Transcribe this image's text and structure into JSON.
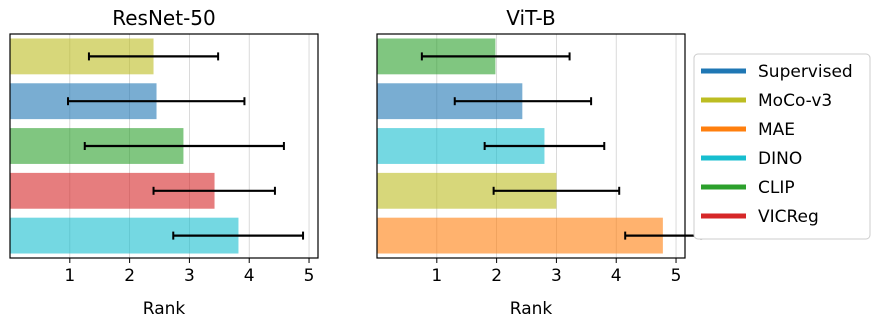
{
  "chart_data": [
    {
      "type": "bar",
      "orientation": "horizontal",
      "title": "ResNet-50",
      "xlabel": "Rank",
      "ylabel": "",
      "xlim": [
        0,
        5.15
      ],
      "xticks": [
        "1",
        "2",
        "3",
        "4",
        "5"
      ],
      "grid": "vertical",
      "bars": [
        {
          "category": "MoCo-v3",
          "value": 2.4,
          "err_low": 1.32,
          "err_high": 3.48,
          "color": "#bcbd22"
        },
        {
          "category": "Supervised",
          "value": 2.45,
          "err_low": 0.97,
          "err_high": 3.92,
          "color": "#1f77b4"
        },
        {
          "category": "CLIP",
          "value": 2.9,
          "err_low": 1.25,
          "err_high": 4.58,
          "color": "#2ca02c"
        },
        {
          "category": "VICReg",
          "value": 3.42,
          "err_low": 2.4,
          "err_high": 4.43,
          "color": "#d62728"
        },
        {
          "category": "DINO",
          "value": 3.82,
          "err_low": 2.73,
          "err_high": 4.9,
          "color": "#17becf"
        }
      ]
    },
    {
      "type": "bar",
      "orientation": "horizontal",
      "title": "ViT-B",
      "xlabel": "Rank",
      "ylabel": "",
      "xlim": [
        0,
        5.15
      ],
      "xticks": [
        "1",
        "2",
        "3",
        "4",
        "5"
      ],
      "grid": "vertical",
      "bars": [
        {
          "category": "CLIP",
          "value": 1.98,
          "err_low": 0.75,
          "err_high": 3.22,
          "color": "#2ca02c"
        },
        {
          "category": "Supervised",
          "value": 2.43,
          "err_low": 1.3,
          "err_high": 3.58,
          "color": "#1f77b4"
        },
        {
          "category": "DINO",
          "value": 2.8,
          "err_low": 1.8,
          "err_high": 3.8,
          "color": "#17becf"
        },
        {
          "category": "MoCo-v3",
          "value": 3.0,
          "err_low": 1.95,
          "err_high": 4.05,
          "color": "#bcbd22"
        },
        {
          "category": "MAE",
          "value": 4.78,
          "err_low": 4.15,
          "err_high": 5.42,
          "color": "#ff7f0e"
        }
      ]
    }
  ],
  "legend": {
    "placement": "right",
    "entries": [
      {
        "label": "Supervised",
        "color": "#1f77b4"
      },
      {
        "label": "MoCo-v3",
        "color": "#bcbd22"
      },
      {
        "label": "MAE",
        "color": "#ff7f0e"
      },
      {
        "label": "DINO",
        "color": "#17becf"
      },
      {
        "label": "CLIP",
        "color": "#2ca02c"
      },
      {
        "label": "VICReg",
        "color": "#d62728"
      }
    ]
  }
}
